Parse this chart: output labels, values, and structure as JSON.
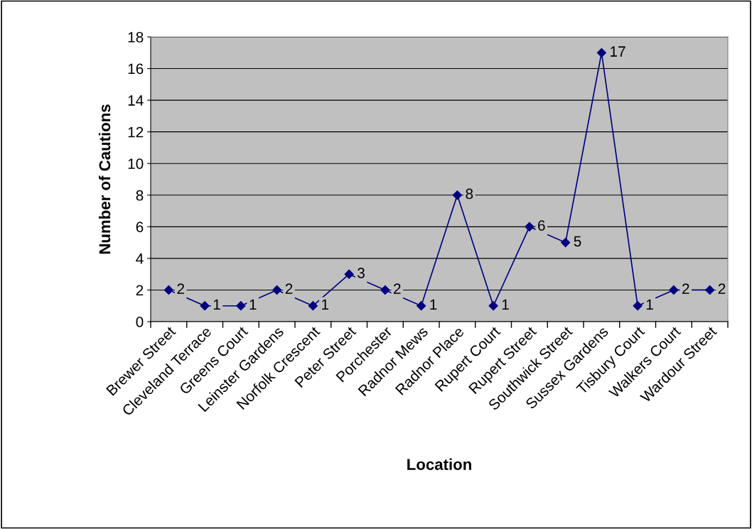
{
  "chart_data": {
    "type": "line",
    "xlabel": "Location",
    "ylabel": "Number of Cautions",
    "categories": [
      "Brewer Street",
      "Cleveland Terrace",
      "Greens Court",
      "Leinster Gardens",
      "Norfolk Crescent",
      "Peter Street",
      "Porchester",
      "Radnor Mews",
      "Radnor Place",
      "Rupert Court",
      "Rupert Street",
      "Southwick Street",
      "Sussex Gardens",
      "Tisbury Court",
      "Walkers Court",
      "Wardour Street"
    ],
    "series": [
      {
        "color": "#000080",
        "values": [
          2,
          1,
          1,
          2,
          1,
          3,
          2,
          1,
          8,
          1,
          6,
          5,
          17,
          1,
          2,
          2
        ]
      }
    ],
    "ylim": [
      0,
      18
    ],
    "yticks": [
      0,
      2,
      4,
      6,
      8,
      10,
      12,
      14,
      16,
      18
    ],
    "grid": "y",
    "marker": "diamond",
    "line_style": "solid",
    "data_labels": true,
    "legend": false
  }
}
